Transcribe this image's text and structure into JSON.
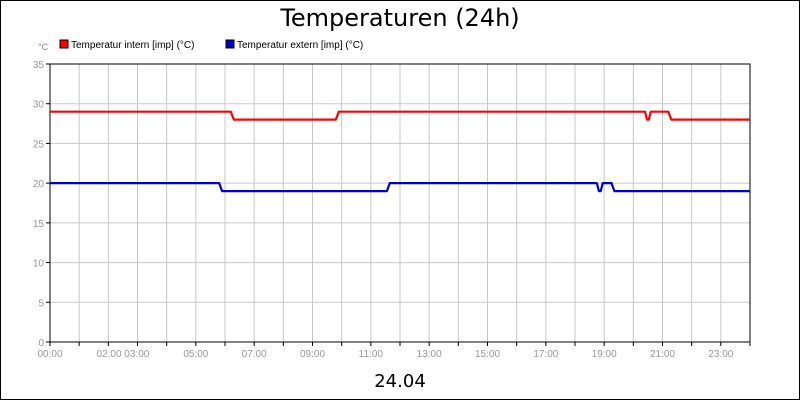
{
  "chart_data": {
    "type": "line",
    "title": "Temperaturen (24h)",
    "ylabel": "°C",
    "xlabel": "24.04",
    "ylim": [
      0,
      35
    ],
    "yticks": [
      0,
      5,
      10,
      15,
      20,
      25,
      30,
      35
    ],
    "xlim": [
      0,
      24
    ],
    "xticks": [
      {
        "t": 0,
        "label": "00:00"
      },
      {
        "t": 2.5,
        "label": "02:00 03:00"
      },
      {
        "t": 5,
        "label": "05:00"
      },
      {
        "t": 7,
        "label": "07:00"
      },
      {
        "t": 9,
        "label": "09:00"
      },
      {
        "t": 11,
        "label": "11:00"
      },
      {
        "t": 13,
        "label": "13:00"
      },
      {
        "t": 15,
        "label": "15:00"
      },
      {
        "t": 17,
        "label": "17:00"
      },
      {
        "t": 19,
        "label": "19:00"
      },
      {
        "t": 21,
        "label": "21:00"
      },
      {
        "t": 23,
        "label": "23:00"
      }
    ],
    "grid": true,
    "legend_position": "top-left",
    "series": [
      {
        "name": "Temperatur intern [imp] (°C)",
        "color": "#ff0000",
        "x": [
          0,
          6.2,
          6.3,
          9.8,
          9.9,
          20.4,
          20.47,
          20.53,
          20.6,
          21.2,
          21.3,
          24
        ],
        "y": [
          29,
          29,
          28,
          28,
          29,
          29,
          28,
          28,
          29,
          29,
          28,
          28
        ]
      },
      {
        "name": "Temperatur extern [imp] (°C)",
        "color": "#0000cc",
        "x": [
          0,
          5.8,
          5.9,
          11.55,
          11.65,
          18.75,
          18.82,
          18.88,
          18.95,
          19.25,
          19.35,
          24
        ],
        "y": [
          20,
          20,
          19,
          19,
          20,
          20,
          19,
          19,
          20,
          20,
          19,
          19
        ]
      }
    ]
  }
}
